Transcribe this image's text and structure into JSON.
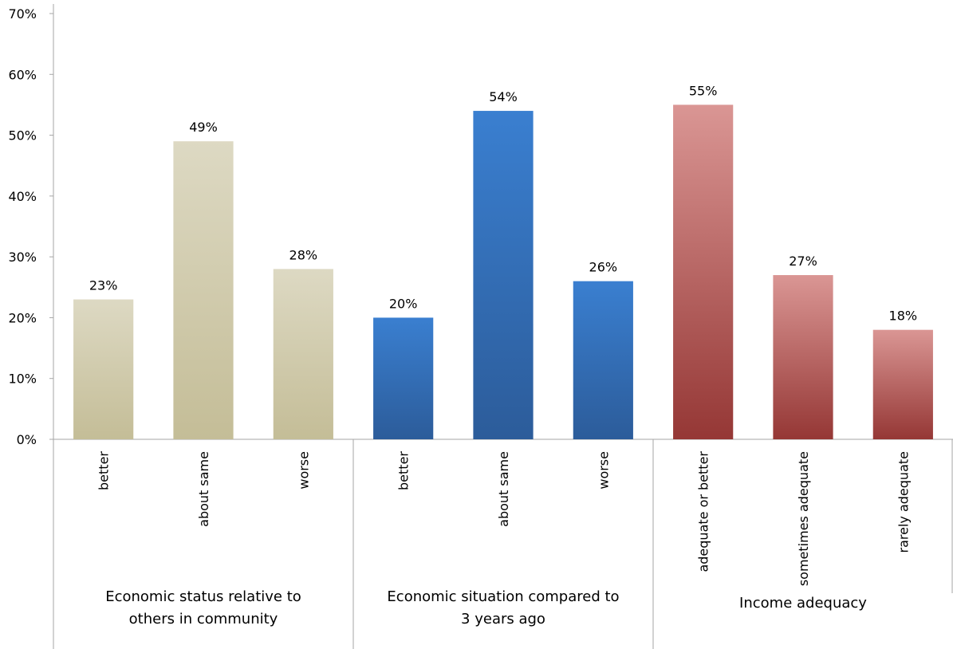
{
  "chart_data": {
    "type": "bar",
    "title": "",
    "xlabel": "",
    "ylabel": "",
    "ylim": [
      0,
      70
    ],
    "y_ticks": [
      "0%",
      "10%",
      "20%",
      "30%",
      "40%",
      "50%",
      "60%",
      "70%"
    ],
    "grid": false,
    "groups": [
      {
        "label_lines": [
          "Economic status relative to",
          "others in community"
        ],
        "color_top": "#ddd9c3",
        "color_bottom": "#c4bd97",
        "categories": [
          "better",
          "about same",
          "worse"
        ],
        "values": [
          23,
          49,
          28
        ],
        "value_labels": [
          "23%",
          "49%",
          "28%"
        ]
      },
      {
        "label_lines": [
          "Economic situation compared to",
          "3 years ago"
        ],
        "color_top": "#3a7fd0",
        "color_bottom": "#2c5c9a",
        "categories": [
          "better",
          "about same",
          "worse"
        ],
        "values": [
          20,
          54,
          26
        ],
        "value_labels": [
          "20%",
          "54%",
          "26%"
        ]
      },
      {
        "label_lines": [
          "Income adequacy"
        ],
        "color_top": "#da9694",
        "color_bottom": "#953735",
        "categories": [
          "adequate or better",
          "sometimes adequate",
          "rarely adequate"
        ],
        "values": [
          55,
          27,
          18
        ],
        "value_labels": [
          "55%",
          "27%",
          "18%"
        ]
      }
    ]
  }
}
